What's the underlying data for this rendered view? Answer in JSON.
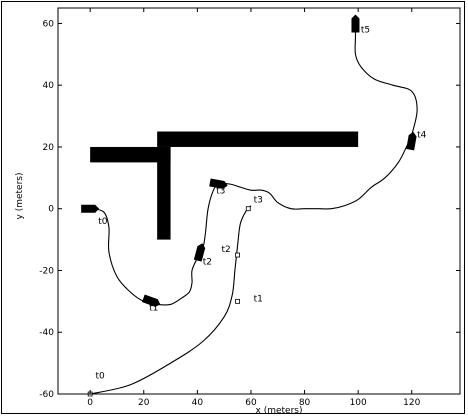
{
  "chart_data": {
    "type": "line",
    "xlabel": "x (meters)",
    "ylabel": "y (meters)",
    "xlim": [
      -12,
      138
    ],
    "ylim": [
      -60,
      65
    ],
    "xticks": [
      0,
      20,
      40,
      60,
      80,
      100,
      120
    ],
    "yticks": [
      -60,
      -40,
      -20,
      0,
      20,
      40,
      60
    ],
    "grid": false,
    "obstacles": [
      {
        "name": "horizontal-bar-left",
        "x": [
          0,
          30
        ],
        "y": [
          15,
          20
        ]
      },
      {
        "name": "vertical-bar",
        "x": [
          25,
          30
        ],
        "y": [
          -10,
          20
        ]
      },
      {
        "name": "horizontal-bar-right",
        "x": [
          25,
          100
        ],
        "y": [
          20,
          25
        ]
      }
    ],
    "series": [
      {
        "points": [
          [
            0,
            0
          ],
          [
            5,
            -1
          ],
          [
            7,
            -6
          ],
          [
            7,
            -14
          ],
          [
            10,
            -22
          ],
          [
            15,
            -27
          ],
          [
            20,
            -30
          ],
          [
            25,
            -31
          ],
          [
            30,
            -31
          ],
          [
            34,
            -29
          ],
          [
            37,
            -27
          ],
          [
            38,
            -24
          ],
          [
            38,
            -20
          ],
          [
            40,
            -16
          ],
          [
            42,
            -13
          ],
          [
            43,
            -8
          ],
          [
            44,
            0
          ],
          [
            46,
            6
          ],
          [
            48,
            8
          ],
          [
            52,
            8
          ],
          [
            56,
            7
          ],
          [
            60,
            6
          ],
          [
            64,
            6
          ],
          [
            67,
            5
          ],
          [
            70,
            2
          ],
          [
            75,
            0
          ],
          [
            80,
            0
          ],
          [
            85,
            0
          ],
          [
            90,
            0
          ],
          [
            95,
            1
          ],
          [
            100,
            3
          ],
          [
            105,
            7
          ],
          [
            110,
            10
          ],
          [
            115,
            15
          ],
          [
            118,
            20
          ],
          [
            120,
            24
          ],
          [
            122,
            32
          ],
          [
            120,
            38
          ],
          [
            113,
            40
          ],
          [
            106,
            42
          ],
          [
            101,
            46
          ],
          [
            99,
            50
          ],
          [
            99,
            56
          ],
          [
            99,
            62
          ]
        ]
      },
      {
        "points": [
          [
            0,
            -60
          ],
          [
            15,
            -57
          ],
          [
            30,
            -50
          ],
          [
            42,
            -43
          ],
          [
            50,
            -35
          ],
          [
            53,
            -28
          ],
          [
            54,
            -20
          ],
          [
            55,
            -12
          ],
          [
            56,
            -5
          ],
          [
            58,
            -1
          ],
          [
            60,
            1
          ]
        ]
      }
    ],
    "vehicles": [
      {
        "name": "t0",
        "x": 0,
        "y": 0,
        "angle": 0
      },
      {
        "name": "t1",
        "x": 23,
        "y": -30,
        "angle": 20
      },
      {
        "name": "t2",
        "x": 41,
        "y": -14,
        "angle": -75
      },
      {
        "name": "t3",
        "x": 48,
        "y": 8,
        "angle": 10
      },
      {
        "name": "t4",
        "x": 120,
        "y": 22,
        "angle": -80
      },
      {
        "name": "t5",
        "x": 99,
        "y": 60,
        "angle": -90
      }
    ],
    "markers": [
      {
        "name": "t0",
        "x": 0,
        "y": -60
      },
      {
        "name": "t1",
        "x": 55,
        "y": -30
      },
      {
        "name": "t2",
        "x": 55,
        "y": -15
      },
      {
        "name": "t3",
        "x": 59,
        "y": 0
      }
    ],
    "time_labels": [
      {
        "text": "t0",
        "x": 3,
        "y": -5
      },
      {
        "text": "t1",
        "x": 22,
        "y": -33
      },
      {
        "text": "t2",
        "x": 42,
        "y": -18
      },
      {
        "text": "t3",
        "x": 47,
        "y": 5
      },
      {
        "text": "t4",
        "x": 122,
        "y": 23
      },
      {
        "text": "t5",
        "x": 101,
        "y": 57
      },
      {
        "text": "t0",
        "x": 2,
        "y": -55
      },
      {
        "text": "t1",
        "x": 61,
        "y": -30
      },
      {
        "text": "t2",
        "x": 49,
        "y": -14
      },
      {
        "text": "t3",
        "x": 61,
        "y": 2
      }
    ]
  }
}
